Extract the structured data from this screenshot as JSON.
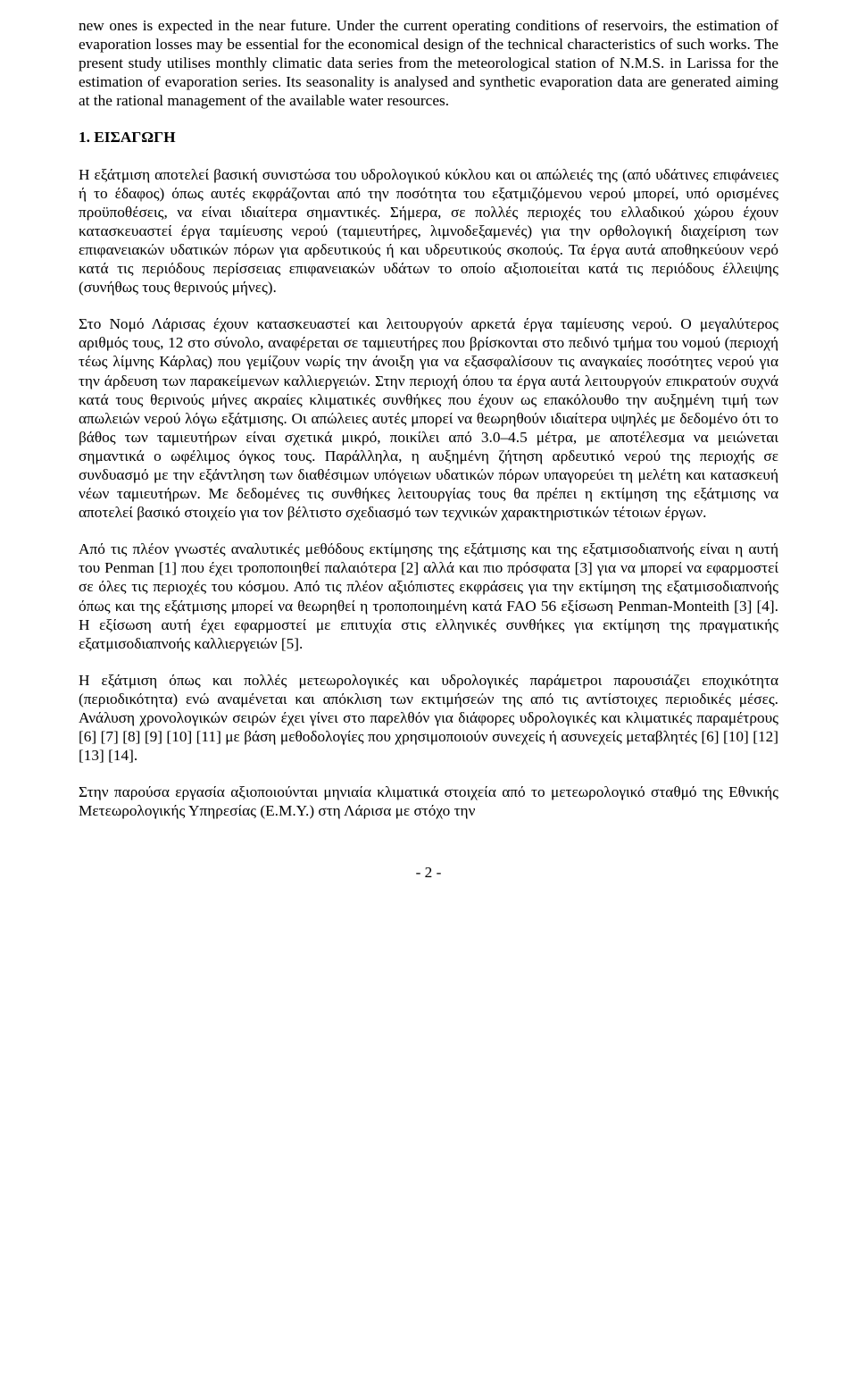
{
  "abstract_continuation": "new ones is expected in the near future. Under the current operating conditions of reservoirs, the estimation of evaporation losses may be essential for the economical design of the technical characteristics of such works. The present study utilises monthly climatic data series from the meteorological station of N.M.S. in Larissa for the estimation of evaporation series. Its seasonality is analysed and synthetic evaporation data are generated aiming at the rational management of the available water resources.",
  "heading_1": "1. ΕΙΣΑΓΩΓΗ",
  "para_1": "Η εξάτμιση αποτελεί βασική συνιστώσα του υδρολογικού κύκλου και οι απώλειές της (από υδάτινες επιφάνειες ή το έδαφος) όπως αυτές εκφράζονται από την ποσότητα του εξατμιζόμενου νερού μπορεί, υπό ορισμένες προϋποθέσεις, να είναι ιδιαίτερα σημαντικές. Σήμερα, σε πολλές περιοχές του ελλαδικού χώρου έχουν κατασκευαστεί έργα ταμίευσης νερού (ταμιευτήρες, λιμνοδεξαμενές) για την ορθολογική διαχείριση των επιφανειακών υδατικών πόρων για αρδευτικούς ή και υδρευτικούς σκοπούς. Τα έργα αυτά αποθηκεύουν νερό κατά τις περιόδους περίσσειας επιφανειακών υδάτων το οποίο αξιοποιείται κατά τις περιόδους έλλειψης (συνήθως τους θερινούς μήνες).",
  "para_2": "Στο Νομό Λάρισας έχουν κατασκευαστεί και λειτουργούν αρκετά έργα ταμίευσης νερού. Ο μεγαλύτερος αριθμός τους, 12 στο σύνολο, αναφέρεται σε ταμιευτήρες που βρίσκονται στο πεδινό τμήμα του νομού (περιοχή τέως λίμνης Κάρλας) που γεμίζουν νωρίς την άνοιξη για να εξασφαλίσουν τις αναγκαίες ποσότητες νερού για την άρδευση των παρακείμενων καλλιεργειών. Στην περιοχή όπου τα έργα αυτά λειτουργούν επικρατούν συχνά κατά τους θερινούς μήνες ακραίες κλιματικές συνθήκες που έχουν ως επακόλουθο την αυξημένη τιμή των απωλειών νερού λόγω εξάτμισης. Οι απώλειες αυτές μπορεί να θεωρηθούν ιδιαίτερα υψηλές με δεδομένο ότι το βάθος των ταμιευτήρων είναι σχετικά μικρό, ποικίλει από 3.0–4.5 μέτρα, με αποτέλεσμα να μειώνεται σημαντικά ο ωφέλιμος όγκος τους. Παράλληλα, η αυξημένη ζήτηση αρδευτικό νερού της περιοχής σε συνδυασμό με την εξάντληση των διαθέσιμων υπόγειων υδατικών πόρων υπαγορεύει τη μελέτη και κατασκευή νέων ταμιευτήρων. Με δεδομένες τις συνθήκες λειτουργίας τους θα πρέπει η εκτίμηση της εξάτμισης να αποτελεί βασικό στοιχείο για  τον βέλτιστο σχεδιασμό των τεχνικών χαρακτηριστικών τέτοιων έργων.",
  "para_3": "Από τις πλέον γνωστές αναλυτικές μεθόδους εκτίμησης της εξάτμισης και της εξατμισοδιαπνοής είναι η αυτή του Penman [1] που έχει τροποποιηθεί παλαιότερα [2] αλλά και πιο πρόσφατα [3] για να μπορεί να εφαρμοστεί σε όλες τις περιοχές του κόσμου. Από τις πλέον αξιόπιστες εκφράσεις για την εκτίμηση της εξατμισοδιαπνοής όπως και της εξάτμισης μπορεί να θεωρηθεί η τροποποιημένη κατά FAO 56 εξίσωση Penman-Monteith [3] [4]. Η εξίσωση αυτή έχει εφαρμοστεί με επιτυχία στις ελληνικές συνθήκες για εκτίμηση της πραγματικής εξατμισοδιαπνοής καλλιεργειών [5].",
  "para_4": "Η εξάτμιση όπως και πολλές μετεωρολογικές και υδρολογικές παράμετροι παρουσιάζει εποχικότητα (περιοδικότητα) ενώ αναμένεται και απόκλιση των εκτιμήσεών της από τις αντίστοιχες περιοδικές μέσες. Ανάλυση χρονολογικών σειρών έχει γίνει στο παρελθόν για διάφορες υδρολογικές και κλιματικές παραμέτρους [6] [7] [8] [9] [10] [11] με βάση μεθοδολογίες που χρησιμοποιούν συνεχείς ή ασυνεχείς μεταβλητές [6] [10] [12] [13] [14].",
  "para_5": "Στην παρούσα εργασία αξιοποιούνται μηνιαία κλιματικά στοιχεία από το μετεωρολογικό σταθμό της Εθνικής Μετεωρολογικής Υπηρεσίας (Ε.Μ.Υ.) στη Λάρισα με στόχο την",
  "page_number": "- 2 -"
}
